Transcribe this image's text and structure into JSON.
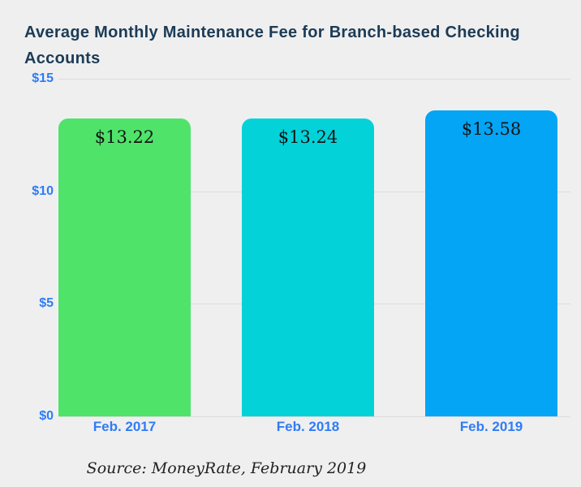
{
  "chart_data": {
    "type": "bar",
    "title": "Average Monthly Maintenance Fee for Branch-based Checking Accounts",
    "categories": [
      "Feb. 2017",
      "Feb. 2018",
      "Feb. 2019"
    ],
    "values": [
      13.22,
      13.24,
      13.58
    ],
    "value_labels": [
      "$13.22",
      "$13.24",
      "$13.58"
    ],
    "bar_colors": [
      "#4fe36a",
      "#03d2d9",
      "#04a5f5"
    ],
    "yticks": [
      {
        "label": "$15",
        "value": 15
      },
      {
        "label": "$10",
        "value": 10
      },
      {
        "label": "$5",
        "value": 5
      },
      {
        "label": "$0",
        "value": 0
      }
    ],
    "ylim": [
      0,
      15
    ],
    "grid": true,
    "legend": "none",
    "xlabel": "",
    "ylabel": "",
    "axis_label_color": "#2e7cf6",
    "title_color": "#1d3b55",
    "gridline_color": "#dcdcdd",
    "source": "Source: MoneyRate, February 2019"
  }
}
